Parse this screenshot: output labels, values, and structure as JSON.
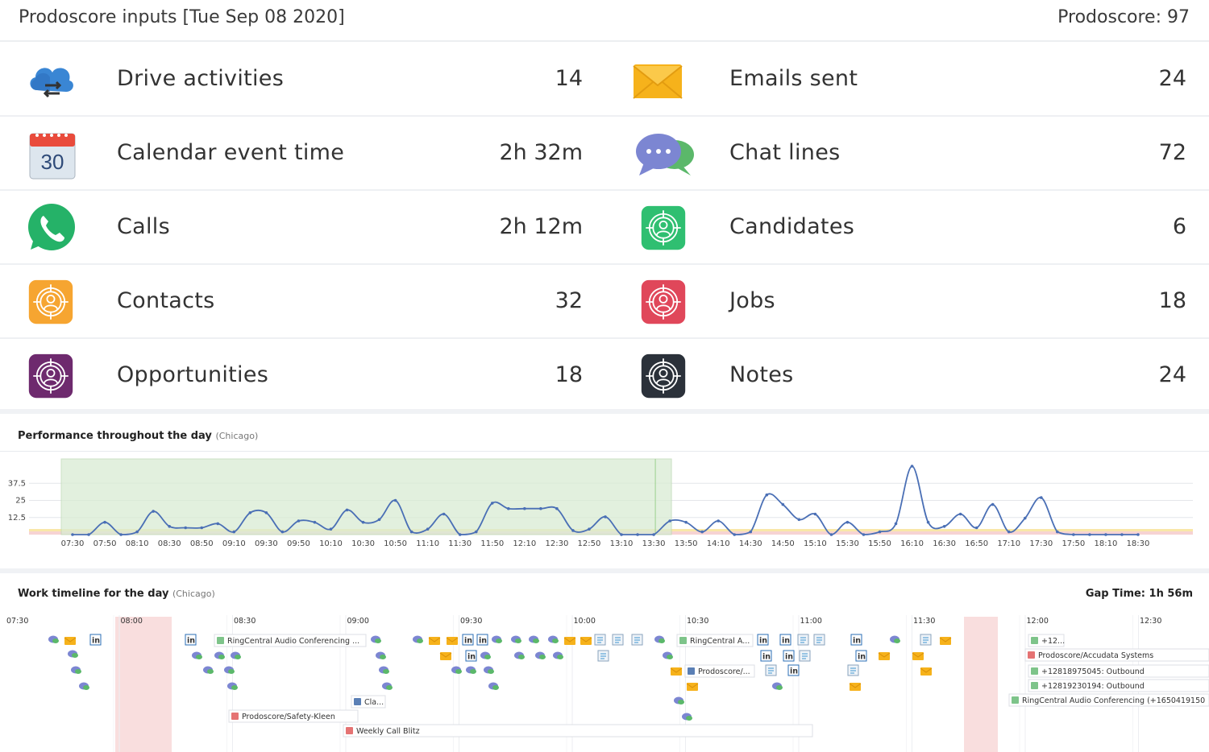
{
  "header": {
    "title": "Prodoscore inputs [Tue Sep 08 2020]",
    "score": "Prodoscore: 97"
  },
  "metrics": [
    {
      "label": "Drive activities",
      "value": "14",
      "icon": "cloud-sync-icon"
    },
    {
      "label": "Emails sent",
      "value": "24",
      "icon": "envelope-icon"
    },
    {
      "label": "Calendar event time",
      "value": "2h 32m",
      "icon": "calendar-icon"
    },
    {
      "label": "Chat lines",
      "value": "72",
      "icon": "chat-bubbles-icon"
    },
    {
      "label": "Calls",
      "value": "2h 12m",
      "icon": "phone-icon"
    },
    {
      "label": "Candidates",
      "value": "6",
      "icon": "candidate-target-icon"
    },
    {
      "label": "Contacts",
      "value": "32",
      "icon": "contact-target-icon"
    },
    {
      "label": "Jobs",
      "value": "18",
      "icon": "job-target-icon"
    },
    {
      "label": "Opportunities",
      "value": "18",
      "icon": "opportunity-target-icon"
    },
    {
      "label": "Notes",
      "value": "24",
      "icon": "note-target-icon"
    }
  ],
  "performance": {
    "title": "Performance throughout the day",
    "subtitle": "(Chicago)"
  },
  "chart_data": {
    "type": "line",
    "x": [
      "07:30",
      "07:40",
      "07:50",
      "08:00",
      "08:10",
      "08:20",
      "08:30",
      "08:40",
      "08:50",
      "09:00",
      "09:10",
      "09:20",
      "09:30",
      "09:40",
      "09:50",
      "10:00",
      "10:10",
      "10:20",
      "10:30",
      "10:40",
      "10:50",
      "11:00",
      "11:10",
      "11:20",
      "11:30",
      "11:40",
      "11:50",
      "12:00",
      "12:10",
      "12:20",
      "12:30",
      "12:40",
      "12:50",
      "13:00",
      "13:10",
      "13:20",
      "13:30",
      "13:40",
      "13:50",
      "14:00",
      "14:10",
      "14:20",
      "14:30",
      "14:40",
      "14:50",
      "15:00",
      "15:10",
      "15:20",
      "15:30",
      "15:40",
      "15:50",
      "16:00",
      "16:10",
      "16:20",
      "16:30",
      "16:40",
      "16:50",
      "17:00",
      "17:10",
      "17:20",
      "17:30",
      "17:40",
      "17:50",
      "18:00",
      "18:10",
      "18:20",
      "18:30"
    ],
    "y": [
      0,
      0,
      9,
      0,
      2,
      17,
      6,
      5,
      5,
      8,
      2,
      16,
      16,
      2,
      10,
      9,
      4,
      18,
      9,
      11,
      25,
      2,
      4,
      15,
      0,
      2,
      23,
      19,
      19,
      19,
      19,
      3,
      4,
      13,
      0,
      0,
      0,
      10,
      9,
      2,
      10,
      0,
      2,
      29,
      22,
      11,
      15,
      0,
      9,
      0,
      2,
      8,
      50,
      9,
      6,
      15,
      5,
      22,
      2,
      12,
      27,
      2,
      0,
      0,
      0,
      0,
      0
    ],
    "x_ticks": [
      "07:30",
      "07:50",
      "08:10",
      "08:30",
      "08:50",
      "09:10",
      "09:30",
      "09:50",
      "10:10",
      "10:30",
      "10:50",
      "11:10",
      "11:30",
      "11:50",
      "12:10",
      "12:30",
      "12:50",
      "13:10",
      "13:30",
      "13:50",
      "14:10",
      "14:30",
      "14:50",
      "15:10",
      "15:30",
      "15:50",
      "16:10",
      "16:30",
      "16:50",
      "17:10",
      "17:30",
      "17:50",
      "18:10",
      "18:30"
    ],
    "y_ticks": [
      "12.5",
      "25",
      "37.5"
    ],
    "ylim": [
      0,
      50
    ],
    "highlight_range": [
      "07:30",
      "13:30"
    ],
    "line_color": "#4a6fb5",
    "highlight_color": "#d9ecd3"
  },
  "timeline": {
    "title": "Work timeline for the day",
    "subtitle": "(Chicago)",
    "gap_time": "Gap Time: 1h 56m",
    "hours": [
      "07:30",
      "08:00",
      "08:30",
      "09:00",
      "09:30",
      "10:00",
      "10:30",
      "11:00",
      "11:30",
      "12:00",
      "12:30"
    ],
    "labels": {
      "ringcentral_1": "RingCentral Audio Conferencing ...",
      "ringcentral_2": "RingCentral A...",
      "safety": "Prodoscore/Safety-Kleen",
      "weekly": "Weekly Call Blitz",
      "cla": "Cla...",
      "prodoscore_short": "Prodoscore/...",
      "call_short": "+12...",
      "accudata": "Prodoscore/Accudata Systems",
      "outbound_1": "+12818975045: Outbound",
      "outbound_2": "+12819230194: Outbound",
      "ringcentral_3": "RingCentral Audio Conferencing (+1650419150"
    }
  }
}
